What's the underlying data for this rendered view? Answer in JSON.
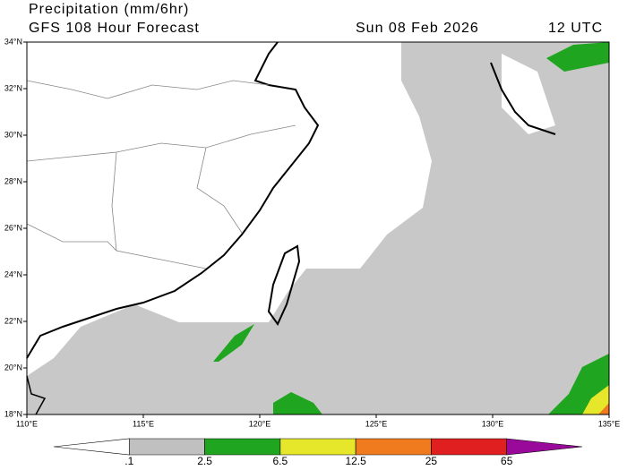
{
  "header": {
    "title": "Precipitation (mm/6hr)",
    "subtitle": "GFS 108 Hour Forecast",
    "date": "Sun 08 Feb 2026",
    "time": "12 UTC"
  },
  "map": {
    "lonlim": [
      110,
      135
    ],
    "latlim": [
      18,
      34
    ],
    "lat_ticks": [
      {
        "value": 18,
        "label": "18°N"
      },
      {
        "value": 20,
        "label": "20°N"
      },
      {
        "value": 22,
        "label": "22°N"
      },
      {
        "value": 24,
        "label": "24°N"
      },
      {
        "value": 26,
        "label": "26°N"
      },
      {
        "value": 28,
        "label": "28°N"
      },
      {
        "value": 30,
        "label": "30°N"
      },
      {
        "value": 32,
        "label": "32°N"
      },
      {
        "value": 34,
        "label": "34°N"
      }
    ],
    "lon_ticks": [
      {
        "value": 110,
        "label": "110°E"
      },
      {
        "value": 115,
        "label": "115°E"
      },
      {
        "value": 120,
        "label": "120°E"
      },
      {
        "value": 125,
        "label": "125°E"
      },
      {
        "value": 130,
        "label": "130°E"
      },
      {
        "value": 135,
        "label": "135°E"
      }
    ]
  },
  "colorbar": {
    "levels": [
      {
        "value": 0.1,
        "label": ".1"
      },
      2.5,
      6.5,
      12.5,
      25,
      65
    ],
    "colors": [
      "#ffffff",
      "#c0c0c0",
      "#1fa51f",
      "#e6e62a",
      "#f07a1e",
      "#e02020",
      "#9a0a9a"
    ]
  }
}
